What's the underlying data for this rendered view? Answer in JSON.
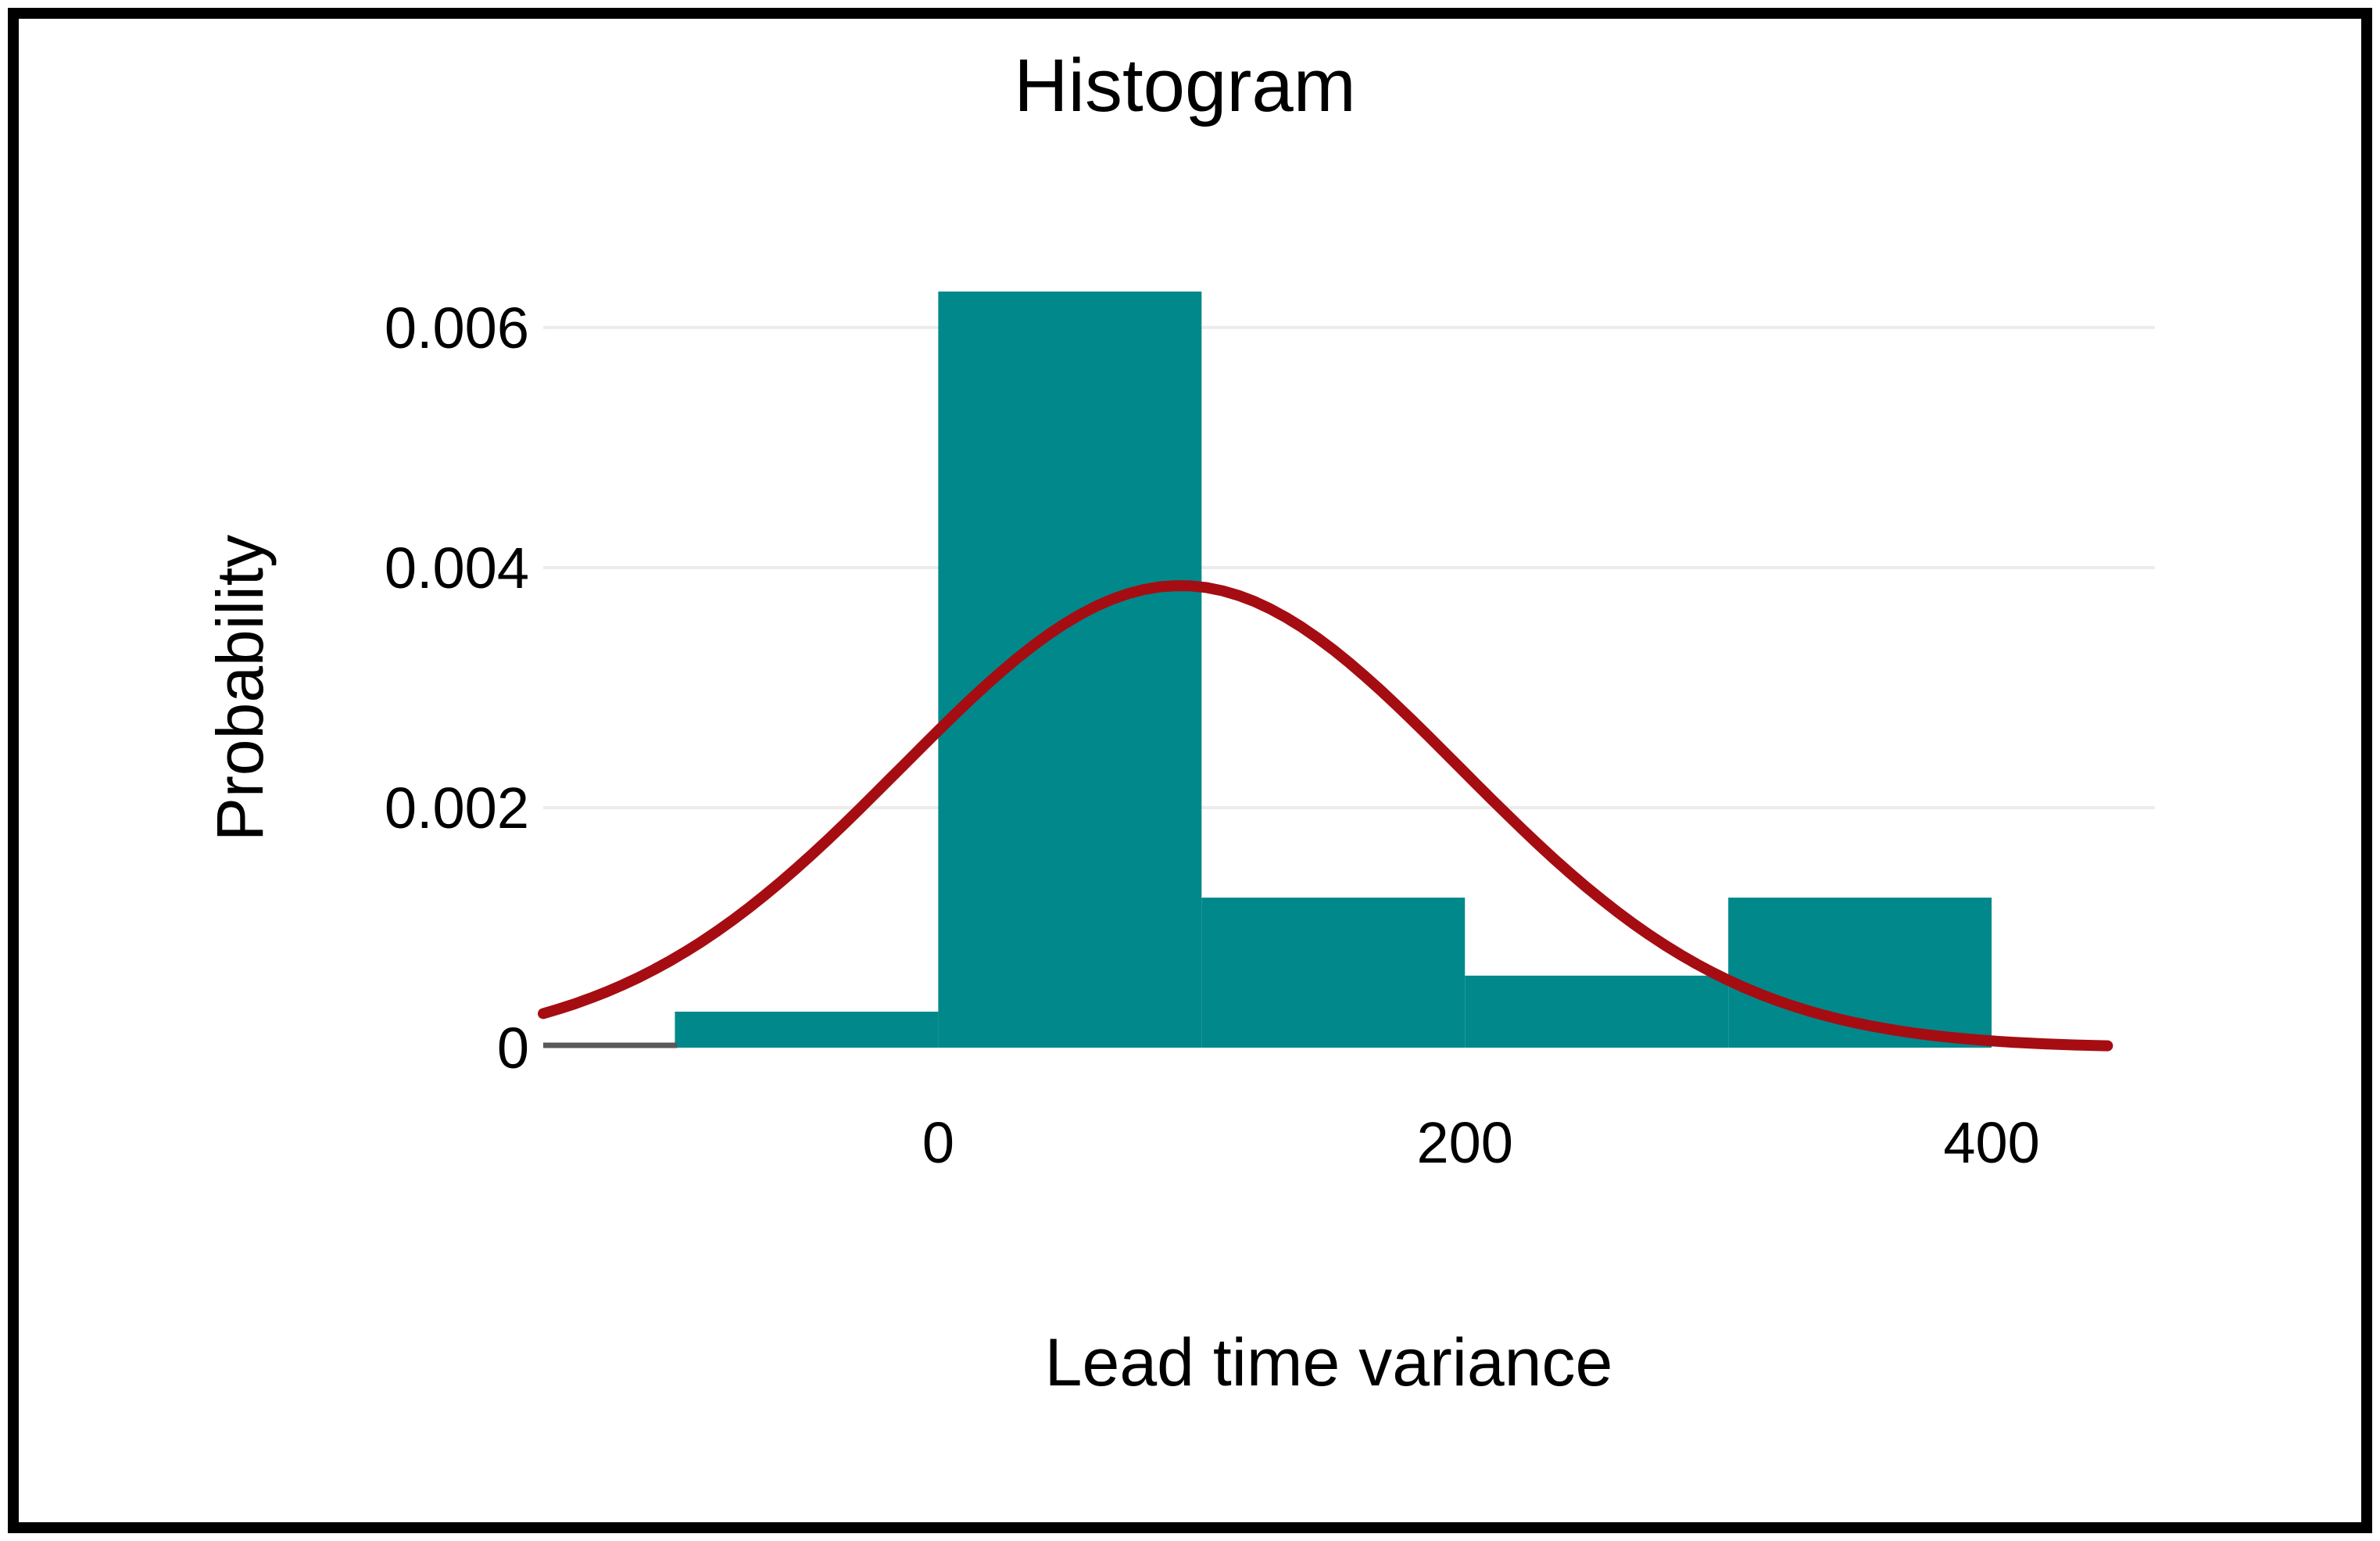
{
  "chart_data": {
    "type": "bar",
    "subtype": "histogram-with-density-curve",
    "title": "Histogram",
    "xlabel": "Lead time variance",
    "ylabel": "Probability",
    "x_ticks": [
      0,
      200,
      400
    ],
    "x_tick_labels": [
      "0",
      "200",
      "400"
    ],
    "y_ticks": [
      0,
      0.002,
      0.004,
      0.006
    ],
    "y_tick_labels": [
      "0",
      "0.002",
      "0.004",
      "0.006"
    ],
    "xlim": [
      -150,
      462
    ],
    "ylim": [
      0,
      0.00697
    ],
    "grid": "horizontal-gridlines-only",
    "legend": "none",
    "bars": {
      "bin_edges": [
        -100,
        0,
        100,
        200,
        300,
        400
      ],
      "densities": [
        0.0003,
        0.0063,
        0.00125,
        0.0006,
        0.00125
      ]
    },
    "curve": {
      "name": "normal-density-fit",
      "mean": 92,
      "sd": 106,
      "peak": 0.00385,
      "x_start": -150,
      "x_end": 444
    },
    "colors": {
      "bar": "#00888B",
      "curve": "#A50D12",
      "gridline": "#ECECEC",
      "axis_line": "#595959",
      "text": "#000000",
      "background": "#FFFFFF",
      "border": "#000000"
    }
  }
}
